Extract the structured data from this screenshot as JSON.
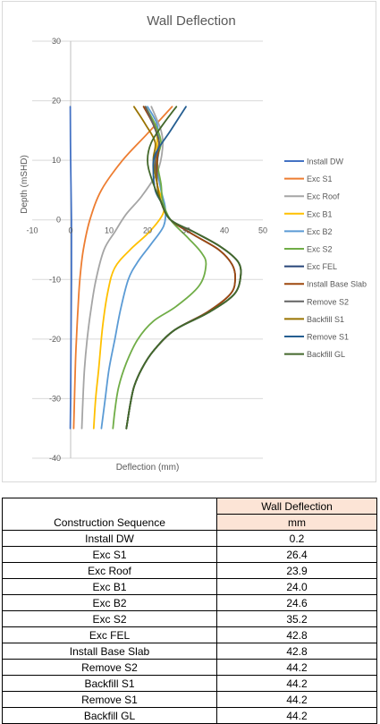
{
  "chart_data": {
    "type": "line",
    "title": "Wall Deflection",
    "xlabel": "Deflection (mm)",
    "ylabel": "Depth (mSHD)",
    "xlim": [
      -10,
      50
    ],
    "ylim": [
      -40,
      30
    ],
    "xticks": [
      "-10",
      "0",
      "10",
      "20",
      "30",
      "40",
      "50"
    ],
    "yticks": [
      "30",
      "20",
      "10",
      "0",
      "-10",
      "-20",
      "-30",
      "-40"
    ],
    "grid": "horizontal",
    "legend_position": "right",
    "series": [
      {
        "name": "Install DW",
        "color": "#4472c4",
        "points": [
          [
            -0.1,
            19
          ],
          [
            0.0,
            10
          ],
          [
            0.2,
            0
          ],
          [
            0.2,
            -10
          ],
          [
            0.1,
            -20
          ],
          [
            0.0,
            -30
          ],
          [
            -0.1,
            -35
          ]
        ]
      },
      {
        "name": "Exc S1",
        "color": "#ed7d31",
        "points": [
          [
            26.4,
            19
          ],
          [
            20,
            14.5
          ],
          [
            13.5,
            10
          ],
          [
            8,
            5
          ],
          [
            5,
            0
          ],
          [
            3.3,
            -5
          ],
          [
            2.4,
            -10
          ],
          [
            1.9,
            -15
          ],
          [
            1.5,
            -20
          ],
          [
            1.2,
            -25
          ],
          [
            1,
            -30
          ],
          [
            0.8,
            -35
          ]
        ]
      },
      {
        "name": "Exc Roof",
        "color": "#a5a5a5",
        "points": [
          [
            21,
            19
          ],
          [
            23.5,
            15
          ],
          [
            23.9,
            12
          ],
          [
            22.5,
            8
          ],
          [
            18.5,
            4
          ],
          [
            14.5,
            1
          ],
          [
            11.5,
            -2
          ],
          [
            8.7,
            -5
          ],
          [
            6.6,
            -10
          ],
          [
            5.3,
            -15
          ],
          [
            4.3,
            -20
          ],
          [
            3.6,
            -25
          ],
          [
            3.2,
            -30
          ],
          [
            2.9,
            -35
          ]
        ]
      },
      {
        "name": "Exc B1",
        "color": "#ffc000",
        "points": [
          [
            19,
            19
          ],
          [
            22,
            16
          ],
          [
            22.5,
            13
          ],
          [
            22.2,
            10
          ],
          [
            22.5,
            6
          ],
          [
            24,
            3
          ],
          [
            24,
            1
          ],
          [
            20.5,
            -2
          ],
          [
            15.5,
            -5
          ],
          [
            11.5,
            -8
          ],
          [
            9.7,
            -12
          ],
          [
            8.3,
            -18
          ],
          [
            7.3,
            -25
          ],
          [
            6.5,
            -30
          ],
          [
            6,
            -35
          ]
        ]
      },
      {
        "name": "Exc B2",
        "color": "#5b9bd5",
        "points": [
          [
            20,
            19
          ],
          [
            22.5,
            16
          ],
          [
            23,
            12
          ],
          [
            22.5,
            9
          ],
          [
            23.5,
            5
          ],
          [
            24.6,
            2
          ],
          [
            24.2,
            -1
          ],
          [
            21,
            -4
          ],
          [
            17.5,
            -7
          ],
          [
            15,
            -10
          ],
          [
            13,
            -15
          ],
          [
            11.5,
            -20
          ],
          [
            10,
            -25
          ],
          [
            9,
            -30
          ],
          [
            8,
            -35
          ]
        ]
      },
      {
        "name": "Exc S2",
        "color": "#70ad47",
        "points": [
          [
            19.5,
            19
          ],
          [
            22,
            16
          ],
          [
            23.5,
            13
          ],
          [
            22.5,
            10
          ],
          [
            23.5,
            6
          ],
          [
            24,
            3
          ],
          [
            26,
            0
          ],
          [
            30.5,
            -3
          ],
          [
            34,
            -5.5
          ],
          [
            35.2,
            -7.5
          ],
          [
            33.5,
            -11
          ],
          [
            27.5,
            -14.5
          ],
          [
            21.5,
            -17
          ],
          [
            17.5,
            -20
          ],
          [
            14.5,
            -24
          ],
          [
            12.5,
            -28
          ],
          [
            11.5,
            -32
          ],
          [
            11,
            -35
          ]
        ]
      },
      {
        "name": "Exc FEL",
        "color": "#264478",
        "points": [
          [
            19,
            19
          ],
          [
            21.5,
            16
          ],
          [
            23,
            13
          ],
          [
            22.5,
            10
          ],
          [
            22.5,
            6
          ],
          [
            23.5,
            3
          ],
          [
            26,
            0
          ],
          [
            32,
            -2.5
          ],
          [
            38.5,
            -5
          ],
          [
            42,
            -7.5
          ],
          [
            42.8,
            -10
          ],
          [
            41.5,
            -12.5
          ],
          [
            35.5,
            -15.5
          ],
          [
            27,
            -18.5
          ],
          [
            21.5,
            -22
          ],
          [
            18.5,
            -25
          ],
          [
            16.5,
            -28
          ],
          [
            15.5,
            -31
          ],
          [
            14.5,
            -35
          ]
        ]
      },
      {
        "name": "Install Base Slab",
        "color": "#9e480e",
        "points": [
          [
            19,
            19
          ],
          [
            21.5,
            16
          ],
          [
            23,
            13
          ],
          [
            22.5,
            10
          ],
          [
            22.5,
            6
          ],
          [
            23.5,
            3
          ],
          [
            26,
            0
          ],
          [
            32,
            -2.5
          ],
          [
            38.5,
            -5
          ],
          [
            42,
            -7.5
          ],
          [
            42.8,
            -10
          ],
          [
            41.5,
            -12.5
          ],
          [
            35.5,
            -15.5
          ],
          [
            27,
            -18.5
          ],
          [
            21.5,
            -22
          ],
          [
            18.5,
            -25
          ],
          [
            16.5,
            -28
          ],
          [
            15.5,
            -31
          ],
          [
            14.5,
            -35
          ]
        ]
      },
      {
        "name": "Remove S2",
        "color": "#636363",
        "points": [
          [
            19.5,
            19
          ],
          [
            21.5,
            16
          ],
          [
            23,
            13
          ],
          [
            22,
            10
          ],
          [
            22.5,
            6
          ],
          [
            23.5,
            3
          ],
          [
            26,
            0
          ],
          [
            32,
            -2
          ],
          [
            39,
            -4.5
          ],
          [
            43.5,
            -7
          ],
          [
            44.2,
            -9.5
          ],
          [
            42.5,
            -12.5
          ],
          [
            36,
            -15.5
          ],
          [
            27,
            -18.5
          ],
          [
            21.5,
            -22
          ],
          [
            18.5,
            -25
          ],
          [
            16.5,
            -28
          ],
          [
            15.5,
            -31
          ],
          [
            14.5,
            -35
          ]
        ]
      },
      {
        "name": "Backfill S1",
        "color": "#997300",
        "points": [
          [
            16.5,
            19
          ],
          [
            19.5,
            16
          ],
          [
            22,
            13
          ],
          [
            21.5,
            10
          ],
          [
            22.5,
            6
          ],
          [
            23.5,
            3
          ],
          [
            26,
            0
          ],
          [
            32,
            -2
          ],
          [
            39,
            -4.5
          ],
          [
            43.5,
            -7
          ],
          [
            44.2,
            -9.5
          ],
          [
            42.5,
            -12.5
          ],
          [
            36,
            -15.5
          ],
          [
            27,
            -18.5
          ],
          [
            21.5,
            -22
          ],
          [
            18.5,
            -25
          ],
          [
            16.5,
            -28
          ],
          [
            15.5,
            -31
          ],
          [
            14.5,
            -35
          ]
        ]
      },
      {
        "name": "Remove S1",
        "color": "#255e91",
        "points": [
          [
            30,
            19
          ],
          [
            26,
            15
          ],
          [
            22,
            11
          ],
          [
            21.5,
            8
          ],
          [
            22,
            5
          ],
          [
            23.5,
            3
          ],
          [
            26,
            0
          ],
          [
            32,
            -2
          ],
          [
            39,
            -4.5
          ],
          [
            43.5,
            -7
          ],
          [
            44.2,
            -9.5
          ],
          [
            42.5,
            -12.5
          ],
          [
            36,
            -15.5
          ],
          [
            27,
            -18.5
          ],
          [
            21.5,
            -22
          ],
          [
            18.5,
            -25
          ],
          [
            16.5,
            -28
          ],
          [
            15.5,
            -31
          ],
          [
            14.5,
            -35
          ]
        ]
      },
      {
        "name": "Backfill GL",
        "color": "#43682b",
        "points": [
          [
            27.5,
            19
          ],
          [
            24,
            16
          ],
          [
            21,
            13
          ],
          [
            20,
            10
          ],
          [
            21,
            7
          ],
          [
            23.5,
            3
          ],
          [
            26,
            0
          ],
          [
            32,
            -2
          ],
          [
            39,
            -4.5
          ],
          [
            43.5,
            -7
          ],
          [
            44.2,
            -9.5
          ],
          [
            42.5,
            -12.5
          ],
          [
            36,
            -15.5
          ],
          [
            27,
            -18.5
          ],
          [
            21.5,
            -22
          ],
          [
            18.5,
            -25
          ],
          [
            16.5,
            -28
          ],
          [
            15.5,
            -31
          ],
          [
            14.5,
            -35
          ]
        ]
      }
    ]
  },
  "table": {
    "header_title": "Wall Deflection",
    "sequence_label": "Construction Sequence",
    "unit": "mm",
    "rows": [
      {
        "stage": "Install DW",
        "value": "0.2"
      },
      {
        "stage": "Exc S1",
        "value": "26.4"
      },
      {
        "stage": "Exc Roof",
        "value": "23.9"
      },
      {
        "stage": "Exc B1",
        "value": "24.0"
      },
      {
        "stage": "Exc B2",
        "value": "24.6"
      },
      {
        "stage": "Exc S2",
        "value": "35.2"
      },
      {
        "stage": "Exc FEL",
        "value": "42.8"
      },
      {
        "stage": "Install Base Slab",
        "value": "42.8"
      },
      {
        "stage": "Remove S2",
        "value": "44.2"
      },
      {
        "stage": "Backfill S1",
        "value": "44.2"
      },
      {
        "stage": "Remove S1",
        "value": "44.2"
      },
      {
        "stage": "Backfill GL",
        "value": "44.2"
      }
    ]
  }
}
